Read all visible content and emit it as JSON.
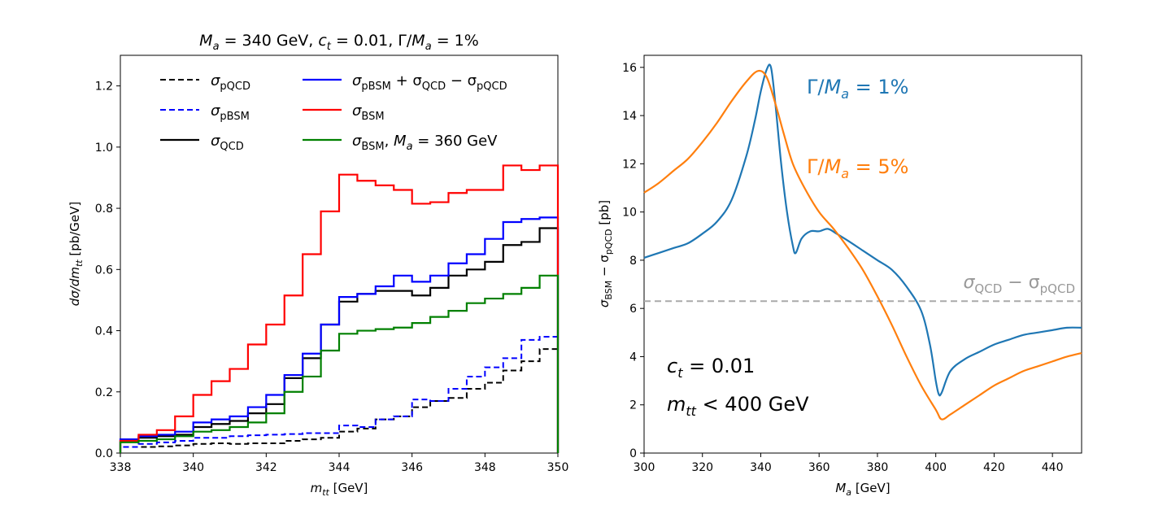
{
  "chart_data": [
    {
      "type": "line",
      "step": true,
      "title": "M_a = 340 GeV,  c_t = 0.01,  Γ/M_a = 1%",
      "title_parts": {
        "p1": "M",
        "p2": "a",
        "p3": " = 340 GeV,  ",
        "p4": "c",
        "p5": "t",
        "p6": " = 0.01,  Γ/",
        "p7": "M",
        "p8": "a",
        "p9": " = 1%"
      },
      "xlabel": {
        "main": "m",
        "sub": "tt",
        "unit": " [GeV]"
      },
      "ylabel": {
        "d1": "dσ/dm",
        "sub": "tt",
        "unit": " [pb/GeV]"
      },
      "xlim": [
        338,
        350
      ],
      "ylim": [
        0,
        1.3
      ],
      "xticks": [
        338,
        340,
        342,
        344,
        346,
        348,
        350
      ],
      "yticks": [
        0.0,
        0.2,
        0.4,
        0.6,
        0.8,
        1.0,
        1.2
      ],
      "ytick_labels": [
        "0.0",
        "0.2",
        "0.4",
        "0.6",
        "0.8",
        "1.0",
        "1.2"
      ],
      "bin_edges": [
        338.0,
        338.5,
        339.0,
        339.5,
        340.0,
        340.5,
        341.0,
        341.5,
        342.0,
        342.5,
        343.0,
        343.5,
        344.0,
        344.5,
        345.0,
        345.5,
        346.0,
        346.5,
        347.0,
        347.5,
        348.0,
        348.5,
        349.0,
        349.5,
        350.0
      ],
      "series": [
        {
          "name": "σ_pQCD",
          "label": {
            "s": "σ",
            "sub": "pQCD",
            "rest": ""
          },
          "color": "#000000",
          "dash": "dashed",
          "values": [
            0.02,
            0.02,
            0.022,
            0.025,
            0.03,
            0.032,
            0.03,
            0.032,
            0.032,
            0.04,
            0.045,
            0.05,
            0.07,
            0.08,
            0.11,
            0.12,
            0.15,
            0.17,
            0.18,
            0.21,
            0.23,
            0.27,
            0.3,
            0.34
          ]
        },
        {
          "name": "σ_pBSM",
          "label": {
            "s": "σ",
            "sub": "pBSM",
            "rest": ""
          },
          "color": "#0000ff",
          "dash": "dashed",
          "values": [
            0.02,
            0.03,
            0.035,
            0.04,
            0.05,
            0.05,
            0.055,
            0.058,
            0.06,
            0.062,
            0.065,
            0.065,
            0.09,
            0.085,
            0.11,
            0.12,
            0.175,
            0.17,
            0.21,
            0.25,
            0.28,
            0.31,
            0.37,
            0.38
          ]
        },
        {
          "name": "σ_QCD",
          "label": {
            "s": "σ",
            "sub": "QCD",
            "rest": ""
          },
          "color": "#000000",
          "dash": "solid",
          "values": [
            0.04,
            0.05,
            0.055,
            0.06,
            0.085,
            0.095,
            0.105,
            0.13,
            0.16,
            0.245,
            0.31,
            0.42,
            0.495,
            0.52,
            0.53,
            0.53,
            0.515,
            0.54,
            0.58,
            0.6,
            0.625,
            0.68,
            0.69,
            0.735
          ]
        },
        {
          "name": "σ_pBSM + σ_QCD − σ_pQCD",
          "label": {
            "s": "σ",
            "sub": "pBSM",
            "rest": " + σ",
            "sub2": "QCD",
            "rest2": " − σ",
            "sub3": "pQCD"
          },
          "color": "#0000ff",
          "dash": "solid",
          "values": [
            0.045,
            0.055,
            0.06,
            0.07,
            0.1,
            0.11,
            0.12,
            0.15,
            0.19,
            0.255,
            0.325,
            0.42,
            0.51,
            0.52,
            0.545,
            0.58,
            0.56,
            0.58,
            0.62,
            0.65,
            0.7,
            0.755,
            0.765,
            0.77
          ]
        },
        {
          "name": "σ_BSM",
          "label": {
            "s": "σ",
            "sub": "BSM",
            "rest": ""
          },
          "color": "#ff0000",
          "dash": "solid",
          "values": [
            0.04,
            0.06,
            0.075,
            0.12,
            0.19,
            0.235,
            0.275,
            0.355,
            0.42,
            0.515,
            0.65,
            0.79,
            0.91,
            0.89,
            0.875,
            0.86,
            0.815,
            0.82,
            0.85,
            0.86,
            0.86,
            0.94,
            0.925,
            0.94
          ]
        },
        {
          "name": "σ_BSM, M_a = 360 GeV",
          "label": {
            "s": "σ",
            "sub": "BSM",
            "rest": ", ",
            "m": "M",
            "msub": "a",
            "rest3": " = 360 GeV"
          },
          "color": "#008000",
          "dash": "solid",
          "values": [
            0.035,
            0.04,
            0.045,
            0.055,
            0.07,
            0.075,
            0.085,
            0.1,
            0.13,
            0.2,
            0.25,
            0.335,
            0.39,
            0.4,
            0.405,
            0.41,
            0.425,
            0.445,
            0.465,
            0.49,
            0.505,
            0.52,
            0.54,
            0.58
          ]
        }
      ]
    },
    {
      "type": "line",
      "xlabel": {
        "main": "M",
        "sub": "a",
        "unit": " [GeV]"
      },
      "ylabel": {
        "a": "σ",
        "asub": "BSM",
        "b": " − σ",
        "bsub": "pQCD",
        "unit": " [pb]"
      },
      "xlim": [
        300,
        450
      ],
      "ylim": [
        0,
        16.5
      ],
      "xticks": [
        300,
        320,
        340,
        360,
        380,
        400,
        420,
        440
      ],
      "yticks": [
        0,
        2,
        4,
        6,
        8,
        10,
        12,
        14,
        16
      ],
      "annotations": {
        "ct": {
          "main": "c",
          "sub": "t",
          "rest": " = 0.01"
        },
        "mtt": {
          "main": "m",
          "sub": "tt",
          "rest": " < 400 GeV"
        },
        "gap_label": {
          "a": "σ",
          "asub": "QCD",
          "b": " − σ",
          "bsub": "pQCD"
        }
      },
      "hline": {
        "value": 6.3,
        "color": "#aaaaaa",
        "dash": "dashed"
      },
      "series": [
        {
          "name": "Γ/M_a = 1%",
          "label": {
            "pre": "Γ/",
            "m": "M",
            "sub": "a",
            "rest": " = 1%"
          },
          "color": "#1f77b4",
          "x": [
            300,
            305,
            310,
            315,
            320,
            325,
            330,
            335,
            338,
            340,
            342,
            343.5,
            345,
            347,
            349,
            351,
            352,
            354,
            357,
            360,
            363,
            366,
            370,
            375,
            380,
            385,
            390,
            395,
            398,
            400,
            401,
            402,
            405,
            410,
            415,
            420,
            425,
            430,
            435,
            440,
            445,
            450
          ],
          "y": [
            8.1,
            8.3,
            8.5,
            8.7,
            9.1,
            9.6,
            10.5,
            12.3,
            13.8,
            15.0,
            15.9,
            16.0,
            14.5,
            12.0,
            10.0,
            8.6,
            8.3,
            8.9,
            9.2,
            9.2,
            9.3,
            9.1,
            8.8,
            8.4,
            8.0,
            7.6,
            6.9,
            5.9,
            4.5,
            3.0,
            2.45,
            2.5,
            3.4,
            3.9,
            4.2,
            4.5,
            4.7,
            4.9,
            5.0,
            5.1,
            5.2,
            5.2
          ]
        },
        {
          "name": "Γ/M_a = 5%",
          "label": {
            "pre": "Γ/",
            "m": "M",
            "sub": "a",
            "rest": " = 5%"
          },
          "color": "#ff7f0e",
          "x": [
            300,
            305,
            310,
            315,
            320,
            325,
            330,
            335,
            339,
            342,
            345,
            348,
            351,
            355,
            360,
            365,
            370,
            375,
            380,
            385,
            390,
            395,
            400,
            402,
            405,
            410,
            415,
            420,
            425,
            430,
            435,
            440,
            445,
            450
          ],
          "y": [
            10.8,
            11.2,
            11.7,
            12.2,
            12.9,
            13.7,
            14.6,
            15.4,
            15.85,
            15.6,
            14.5,
            13.2,
            12.0,
            11.0,
            10.0,
            9.3,
            8.5,
            7.6,
            6.5,
            5.3,
            4.0,
            2.8,
            1.8,
            1.4,
            1.6,
            2.0,
            2.4,
            2.8,
            3.1,
            3.4,
            3.6,
            3.8,
            4.0,
            4.15
          ]
        }
      ]
    }
  ]
}
